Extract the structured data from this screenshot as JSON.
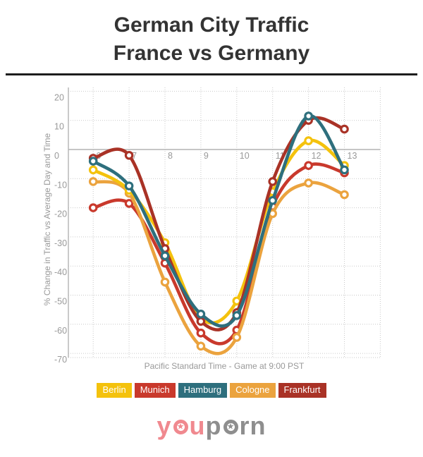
{
  "title": {
    "line1": "German City Traffic",
    "line2": "France vs Germany"
  },
  "chart_data": {
    "type": "line",
    "x": [
      6,
      7,
      8,
      9,
      10,
      11,
      12,
      13
    ],
    "x_visible_tick_labels": [
      "8",
      "9",
      "10",
      "11",
      "12",
      "13"
    ],
    "xlabel": "Pacific Standard Time - Game at 9:00 PST",
    "ylabel": "% Change in Traffic vs Average Day and Time",
    "ylim": [
      -70,
      20
    ],
    "ytick_step": 10,
    "yticks": [
      20,
      10,
      0,
      -10,
      -20,
      -30,
      -40,
      -50,
      -60,
      -70
    ],
    "grid": "dotted",
    "legend_position": "bottom",
    "series": [
      {
        "name": "Berlin",
        "color": "#F4C20D",
        "values": [
          -7,
          -14,
          -32,
          -58,
          -52,
          -14.5,
          3,
          -5.5
        ]
      },
      {
        "name": "Munich",
        "color": "#C9392C",
        "values": [
          -20,
          -18.5,
          -39,
          -63,
          -62,
          -19.5,
          -5.5,
          -8
        ]
      },
      {
        "name": "Hamburg",
        "color": "#2E6F7D",
        "values": [
          -4,
          -12.5,
          -36.5,
          -56.5,
          -57,
          -17.5,
          11.5,
          -7
        ]
      },
      {
        "name": "Cologne",
        "color": "#EBA33E",
        "values": [
          -11,
          -15,
          -45.5,
          -67.5,
          -64.5,
          -22,
          -11.5,
          -15.5
        ]
      },
      {
        "name": "Frankfurt",
        "color": "#A93226",
        "values": [
          -3,
          -2,
          -34,
          -59,
          -56,
          -11,
          10,
          7
        ]
      }
    ]
  },
  "legend_labels": [
    "Berlin",
    "Munich",
    "Hamburg",
    "Cologne",
    "Frankfurt"
  ],
  "logo": {
    "first": "you",
    "second": "porn",
    "pink": "#F0898F",
    "gray": "#8E8E8E",
    "o_glyph": "star"
  }
}
